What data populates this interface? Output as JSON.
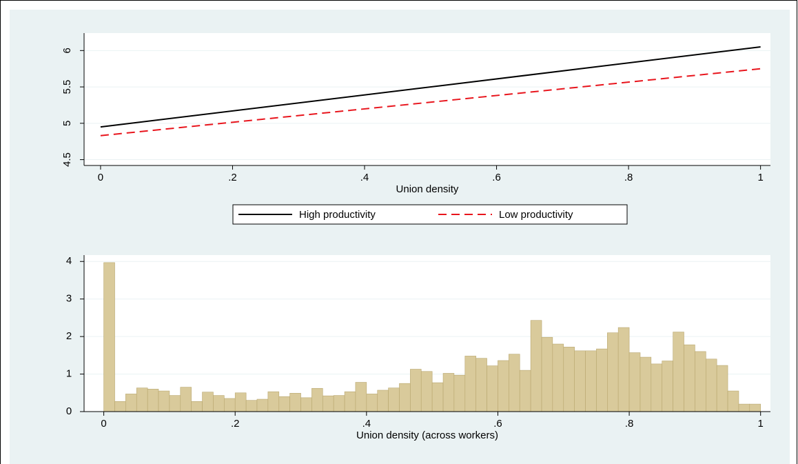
{
  "chart_data": [
    {
      "type": "line",
      "xlabel": "Union density",
      "x": [
        0,
        1
      ],
      "series": [
        {
          "name": "High productivity",
          "color": "#000000",
          "dash": false,
          "values": [
            4.95,
            6.05
          ]
        },
        {
          "name": "Low productivity",
          "color": "#e8141c",
          "dash": true,
          "values": [
            4.83,
            5.75
          ]
        }
      ],
      "xlim": [
        -0.025,
        1.015
      ],
      "xticks": [
        0,
        {
          "value": 0.2,
          "label": ".2"
        },
        {
          "value": 0.4,
          "label": ".4"
        },
        {
          "value": 0.6,
          "label": ".6"
        },
        {
          "value": 0.8,
          "label": ".8"
        },
        1
      ],
      "ylim": [
        4.42,
        6.24
      ],
      "yticks": [
        4.5,
        5,
        5.5,
        6
      ],
      "grid": true,
      "legend": "bottom"
    },
    {
      "type": "histogram",
      "xlabel": "Union density (across workers)",
      "bins": [
        0,
        0.0167,
        0.0333,
        0.05,
        0.0667,
        0.0833,
        0.1,
        0.1167,
        0.1333,
        0.15,
        0.1667,
        0.1833,
        0.2,
        0.2167,
        0.2333,
        0.25,
        0.2667,
        0.2833,
        0.3,
        0.3167,
        0.3333,
        0.35,
        0.3667,
        0.3833,
        0.4,
        0.4167,
        0.4333,
        0.45,
        0.4667,
        0.4833,
        0.5,
        0.5167,
        0.5333,
        0.55,
        0.5667,
        0.5833,
        0.6,
        0.6167,
        0.6333,
        0.65,
        0.6667,
        0.6833,
        0.7,
        0.7167,
        0.7333,
        0.75,
        0.7667,
        0.7833,
        0.8,
        0.8167,
        0.8333,
        0.85,
        0.8667,
        0.8833,
        0.9,
        0.9167,
        0.9333,
        0.95,
        0.9667,
        0.9833,
        1
      ],
      "counts": [
        3.97,
        0.27,
        0.47,
        0.63,
        0.6,
        0.55,
        0.43,
        0.65,
        0.27,
        0.52,
        0.43,
        0.35,
        0.5,
        0.3,
        0.33,
        0.53,
        0.4,
        0.49,
        0.37,
        0.62,
        0.42,
        0.43,
        0.53,
        0.78,
        0.47,
        0.57,
        0.63,
        0.75,
        1.13,
        1.07,
        0.77,
        1.02,
        0.97,
        1.48,
        1.42,
        1.22,
        1.36,
        1.53,
        1.1,
        2.43,
        1.98,
        1.8,
        1.72,
        1.62,
        1.62,
        1.67,
        2.1,
        2.24,
        1.57,
        1.45,
        1.27,
        1.35,
        2.12,
        1.78,
        1.6,
        1.4,
        1.23,
        0.55,
        0.2,
        0.2
      ],
      "color": "#d9ca9b",
      "edgecolor": "#b8a66e",
      "xlim": [
        -0.03,
        1.015
      ],
      "xticks": [
        0,
        {
          "value": 0.2,
          "label": ".2"
        },
        {
          "value": 0.4,
          "label": ".4"
        },
        {
          "value": 0.6,
          "label": ".6"
        },
        {
          "value": 0.8,
          "label": ".8"
        },
        1
      ],
      "ylim": [
        0,
        4.17
      ],
      "yticks": [
        0,
        1,
        2,
        3,
        4
      ],
      "grid": true
    }
  ]
}
